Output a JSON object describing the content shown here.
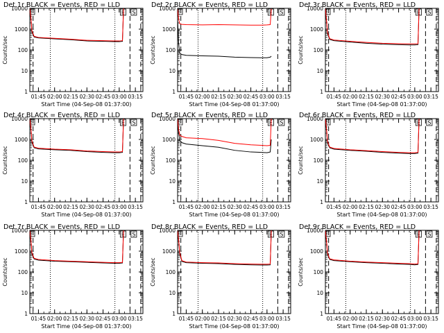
{
  "chart_data": [
    {
      "type": "line",
      "title": "Det 1r BLACK = Events, RED = LLD",
      "xlabel": "Start Time (04-Sep-08 01:37:00)",
      "ylabel": "Counts/sec",
      "yscale": "log",
      "ylim": [
        1,
        10000
      ],
      "xlim": [
        "01:37",
        "03:22"
      ],
      "x_ticks": [
        "01:45",
        "02:00",
        "02:15",
        "02:30",
        "02:45",
        "03:00",
        "03:15"
      ],
      "y_ticks": [
        "1",
        "10",
        "100",
        "1000",
        "10000"
      ],
      "marker_labels": [
        "E",
        "S"
      ],
      "vlines_dashed": [
        "01:40",
        "03:10",
        "03:20"
      ],
      "vlines_dotted": [
        "01:56",
        "02:56"
      ],
      "x": [
        "01:37",
        "01:38",
        "01:39",
        "01:41",
        "01:45",
        "02:00",
        "02:15",
        "02:30",
        "02:45",
        "02:55",
        "03:00",
        "03:03",
        "03:04"
      ],
      "series": [
        {
          "color": "#000000",
          "values": [
            9000,
            3000,
            700,
            420,
            380,
            340,
            310,
            270,
            260,
            250,
            250,
            260,
            9500
          ]
        },
        {
          "color": "#ff0000",
          "values": [
            9500,
            3500,
            800,
            450,
            400,
            360,
            330,
            290,
            280,
            270,
            270,
            280,
            9800
          ]
        }
      ]
    },
    {
      "type": "line",
      "title": "Det 2r BLACK = Events, RED = LLD",
      "xlabel": "Start Time (04-Sep-08 01:37:00)",
      "ylabel": "Counts/sec",
      "yscale": "log",
      "ylim": [
        1,
        10000
      ],
      "xlim": [
        "01:37",
        "03:22"
      ],
      "x_ticks": [
        "01:45",
        "02:00",
        "02:15",
        "02:30",
        "02:45",
        "03:00",
        "03:15"
      ],
      "y_ticks": [
        "1",
        "10",
        "100",
        "1000",
        "10000"
      ],
      "marker_labels": [
        "E",
        "S"
      ],
      "vlines_dashed": [
        "01:40",
        "03:10",
        "03:20"
      ],
      "vlines_dotted": [
        "01:56",
        "02:56"
      ],
      "x": [
        "01:37",
        "01:38",
        "01:39",
        "01:41",
        "01:45",
        "02:00",
        "02:15",
        "02:30",
        "02:45",
        "02:55",
        "03:00",
        "03:03",
        "03:04"
      ],
      "series": [
        {
          "color": "#000000",
          "values": [
            3000,
            200,
            70,
            60,
            55,
            52,
            50,
            45,
            43,
            42,
            42,
            45,
            50
          ]
        },
        {
          "color": "#ff0000",
          "values": [
            9000,
            3000,
            1800,
            1700,
            1650,
            1600,
            1650,
            1600,
            1550,
            1550,
            1600,
            1650,
            9500
          ]
        }
      ]
    },
    {
      "type": "line",
      "title": "Det 3r BLACK = Events, RED = LLD",
      "xlabel": "Start Time (04-Sep-08 01:37:00)",
      "ylabel": "Counts/sec",
      "yscale": "log",
      "ylim": [
        1,
        10000
      ],
      "xlim": [
        "01:37",
        "03:22"
      ],
      "x_ticks": [
        "01:45",
        "02:00",
        "02:15",
        "02:30",
        "02:45",
        "03:00",
        "03:15"
      ],
      "y_ticks": [
        "1",
        "10",
        "100",
        "1000",
        "10000"
      ],
      "marker_labels": [
        "E",
        "S"
      ],
      "vlines_dashed": [
        "01:40",
        "03:10",
        "03:20"
      ],
      "vlines_dotted": [
        "01:56",
        "02:56"
      ],
      "x": [
        "01:37",
        "01:38",
        "01:39",
        "01:41",
        "01:45",
        "02:00",
        "02:15",
        "02:30",
        "02:45",
        "02:55",
        "03:00",
        "03:03",
        "03:04"
      ],
      "series": [
        {
          "color": "#000000",
          "values": [
            9000,
            2500,
            600,
            320,
            280,
            240,
            210,
            190,
            180,
            175,
            175,
            180,
            9500
          ]
        },
        {
          "color": "#ff0000",
          "values": [
            9500,
            3000,
            700,
            350,
            300,
            260,
            230,
            210,
            200,
            195,
            195,
            200,
            9800
          ]
        }
      ]
    },
    {
      "type": "line",
      "title": "Det 4r BLACK = Events, RED = LLD",
      "xlabel": "Start Time (04-Sep-08 01:37:00)",
      "ylabel": "Counts/sec",
      "yscale": "log",
      "ylim": [
        1,
        10000
      ],
      "xlim": [
        "01:37",
        "03:22"
      ],
      "x_ticks": [
        "01:45",
        "02:00",
        "02:15",
        "02:30",
        "02:45",
        "03:00",
        "03:15"
      ],
      "y_ticks": [
        "1",
        "10",
        "100",
        "1000",
        "10000"
      ],
      "marker_labels": [
        "E",
        "S"
      ],
      "vlines_dashed": [
        "01:40",
        "03:10",
        "03:20"
      ],
      "vlines_dotted": [
        "01:56",
        "02:56"
      ],
      "x": [
        "01:37",
        "01:38",
        "01:39",
        "01:41",
        "01:45",
        "02:00",
        "02:15",
        "02:30",
        "02:45",
        "02:55",
        "03:00",
        "03:03",
        "03:04"
      ],
      "series": [
        {
          "color": "#000000",
          "values": [
            9000,
            3000,
            700,
            400,
            350,
            320,
            300,
            260,
            240,
            230,
            230,
            240,
            9500
          ]
        },
        {
          "color": "#ff0000",
          "values": [
            9500,
            3500,
            800,
            430,
            380,
            340,
            320,
            280,
            260,
            250,
            250,
            260,
            9800
          ]
        }
      ]
    },
    {
      "type": "line",
      "title": "Det 5r BLACK = Events, RED = LLD",
      "xlabel": "Start Time (04-Sep-08 01:37:00)",
      "ylabel": "Counts/sec",
      "yscale": "log",
      "ylim": [
        1,
        10000
      ],
      "xlim": [
        "01:37",
        "03:22"
      ],
      "x_ticks": [
        "01:45",
        "02:00",
        "02:15",
        "02:30",
        "02:45",
        "03:00",
        "03:15"
      ],
      "y_ticks": [
        "1",
        "10",
        "100",
        "1000",
        "10000"
      ],
      "marker_labels": [
        "E",
        "S"
      ],
      "vlines_dashed": [
        "01:40",
        "03:10",
        "03:20"
      ],
      "vlines_dotted": [
        "01:56",
        "02:56"
      ],
      "x": [
        "01:37",
        "01:38",
        "01:39",
        "01:41",
        "01:45",
        "02:00",
        "02:15",
        "02:30",
        "02:45",
        "02:55",
        "03:00",
        "03:03",
        "03:04"
      ],
      "series": [
        {
          "color": "#000000",
          "values": [
            8000,
            2000,
            900,
            700,
            600,
            500,
            420,
            300,
            250,
            240,
            230,
            250,
            1000
          ]
        },
        {
          "color": "#ff0000",
          "values": [
            9500,
            3000,
            1600,
            1400,
            1200,
            1100,
            900,
            650,
            550,
            520,
            500,
            520,
            9800
          ]
        }
      ]
    },
    {
      "type": "line",
      "title": "Det 6r BLACK = Events, RED = LLD",
      "xlabel": "Start Time (04-Sep-08 01:37:00)",
      "ylabel": "Counts/sec",
      "yscale": "log",
      "ylim": [
        1,
        10000
      ],
      "xlim": [
        "01:37",
        "03:22"
      ],
      "x_ticks": [
        "01:45",
        "02:00",
        "02:15",
        "02:30",
        "02:45",
        "03:00",
        "03:15"
      ],
      "y_ticks": [
        "1",
        "10",
        "100",
        "1000",
        "10000"
      ],
      "marker_labels": [
        "E",
        "S"
      ],
      "vlines_dashed": [
        "01:40",
        "03:10",
        "03:20"
      ],
      "vlines_dotted": [
        "01:56",
        "02:56"
      ],
      "x": [
        "01:37",
        "01:38",
        "01:39",
        "01:41",
        "01:45",
        "02:00",
        "02:15",
        "02:30",
        "02:45",
        "02:55",
        "03:00",
        "03:03",
        "03:04"
      ],
      "series": [
        {
          "color": "#000000",
          "values": [
            9000,
            3000,
            700,
            400,
            340,
            300,
            270,
            240,
            220,
            210,
            210,
            220,
            9500
          ]
        },
        {
          "color": "#ff0000",
          "values": [
            9500,
            3500,
            800,
            430,
            370,
            320,
            290,
            260,
            240,
            230,
            230,
            240,
            9800
          ]
        }
      ]
    },
    {
      "type": "line",
      "title": "Det 7r BLACK = Events, RED = LLD",
      "xlabel": "Start Time (04-Sep-08 01:37:00)",
      "ylabel": "Counts/sec",
      "yscale": "log",
      "ylim": [
        1,
        10000
      ],
      "xlim": [
        "01:37",
        "03:22"
      ],
      "x_ticks": [
        "01:45",
        "02:00",
        "02:15",
        "02:30",
        "02:45",
        "03:00",
        "03:15"
      ],
      "y_ticks": [
        "1",
        "10",
        "100",
        "1000",
        "10000"
      ],
      "marker_labels": [
        "E",
        "S"
      ],
      "vlines_dashed": [
        "01:40",
        "03:10",
        "03:20"
      ],
      "vlines_dotted": [
        "01:56",
        "02:56"
      ],
      "x": [
        "01:37",
        "01:38",
        "01:39",
        "01:41",
        "01:45",
        "02:00",
        "02:15",
        "02:30",
        "02:45",
        "02:55",
        "03:00",
        "03:03",
        "03:04"
      ],
      "series": [
        {
          "color": "#000000",
          "values": [
            9000,
            3000,
            700,
            420,
            370,
            330,
            310,
            290,
            270,
            260,
            260,
            270,
            9500
          ]
        },
        {
          "color": "#ff0000",
          "values": [
            9500,
            3500,
            800,
            450,
            400,
            350,
            330,
            310,
            290,
            280,
            280,
            290,
            9800
          ]
        }
      ]
    },
    {
      "type": "line",
      "title": "Det 8r BLACK = Events, RED = LLD",
      "xlabel": "Start Time (04-Sep-08 01:37:00)",
      "ylabel": "Counts/sec",
      "yscale": "log",
      "ylim": [
        1,
        10000
      ],
      "xlim": [
        "01:37",
        "03:22"
      ],
      "x_ticks": [
        "01:45",
        "02:00",
        "02:15",
        "02:30",
        "02:45",
        "03:00",
        "03:15"
      ],
      "y_ticks": [
        "1",
        "10",
        "100",
        "1000",
        "10000"
      ],
      "marker_labels": [
        "E",
        "S"
      ],
      "vlines_dashed": [
        "01:40",
        "03:10",
        "03:20"
      ],
      "vlines_dotted": [
        "01:56",
        "02:56"
      ],
      "x": [
        "01:37",
        "01:38",
        "01:39",
        "01:41",
        "01:45",
        "02:00",
        "02:15",
        "02:30",
        "02:45",
        "02:55",
        "03:00",
        "03:03",
        "03:04"
      ],
      "series": [
        {
          "color": "#000000",
          "values": [
            9000,
            3000,
            700,
            320,
            280,
            260,
            250,
            230,
            220,
            215,
            215,
            220,
            9500
          ]
        },
        {
          "color": "#ff0000",
          "values": [
            9500,
            3500,
            800,
            350,
            300,
            280,
            270,
            250,
            240,
            235,
            235,
            240,
            9800
          ]
        }
      ]
    },
    {
      "type": "line",
      "title": "Det 9r BLACK = Events, RED = LLD",
      "xlabel": "Start Time (04-Sep-08 01:37:00)",
      "ylabel": "Counts/sec",
      "yscale": "log",
      "ylim": [
        1,
        10000
      ],
      "xlim": [
        "01:37",
        "03:22"
      ],
      "x_ticks": [
        "01:45",
        "02:00",
        "02:15",
        "02:30",
        "02:45",
        "03:00",
        "03:15"
      ],
      "y_ticks": [
        "1",
        "10",
        "100",
        "1000",
        "10000"
      ],
      "marker_labels": [
        "E",
        "S"
      ],
      "vlines_dashed": [
        "01:40",
        "03:10",
        "03:20"
      ],
      "vlines_dotted": [
        "01:56",
        "02:56"
      ],
      "x": [
        "01:37",
        "01:38",
        "01:39",
        "01:41",
        "01:45",
        "02:00",
        "02:15",
        "02:30",
        "02:45",
        "02:55",
        "03:00",
        "03:03",
        "03:04"
      ],
      "series": [
        {
          "color": "#000000",
          "values": [
            9000,
            3000,
            700,
            400,
            350,
            310,
            280,
            260,
            240,
            230,
            220,
            230,
            9500
          ]
        },
        {
          "color": "#ff0000",
          "values": [
            9500,
            3500,
            800,
            430,
            380,
            330,
            300,
            280,
            260,
            250,
            240,
            250,
            9800
          ]
        }
      ]
    }
  ]
}
